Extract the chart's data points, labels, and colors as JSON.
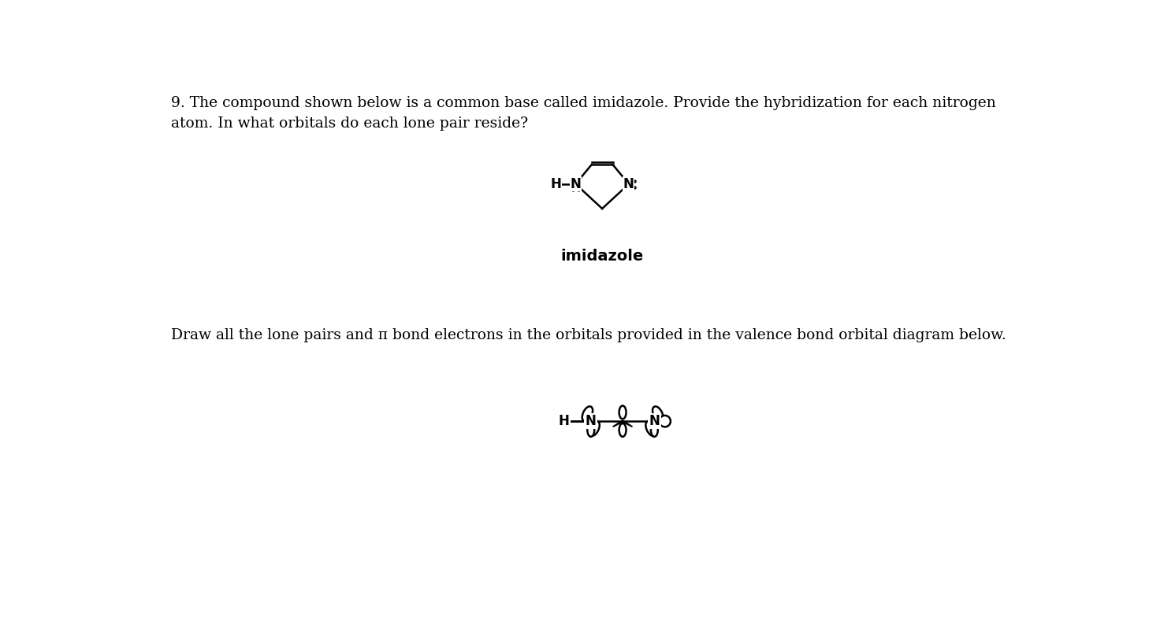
{
  "background_color": "#ffffff",
  "text_question": "9. The compound shown below is a common base called imidazole. Provide the hybridization for each nitrogen\natom. In what orbitals do each lone pair reside?",
  "text_draw": "Draw all the lone pairs and π bond electrons in the orbitals provided in the valence bond orbital diagram below.",
  "text_imidazole": "imidazole",
  "fig_width": 14.91,
  "fig_height": 7.89,
  "question_fontsize": 13.5,
  "draw_fontsize": 13.5,
  "imidazole_fontsize": 14
}
